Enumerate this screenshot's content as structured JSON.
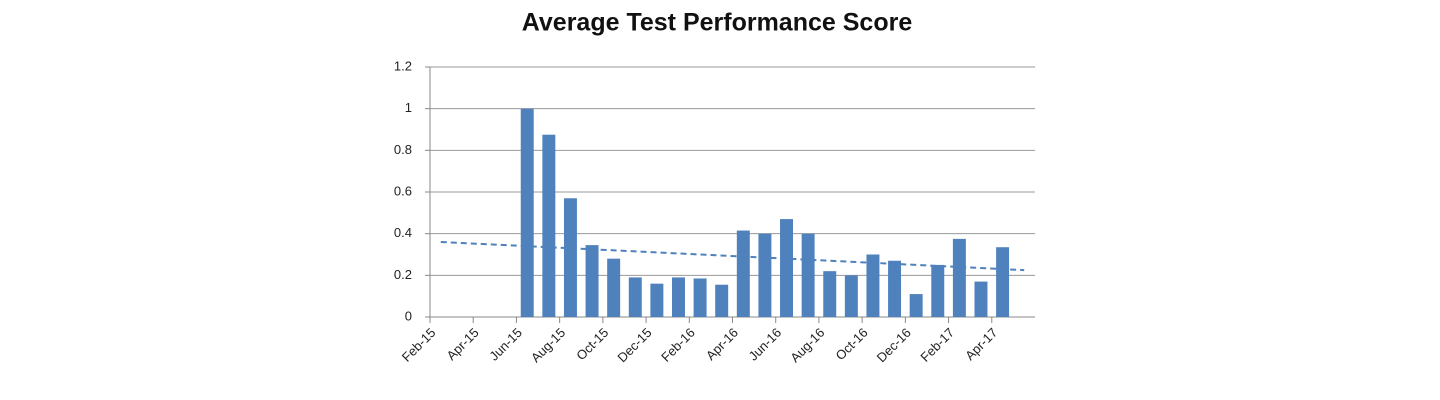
{
  "chart_data": {
    "type": "bar",
    "title": "Average Test Performance Score",
    "categories": [
      "Feb-15",
      null,
      "Apr-15",
      null,
      "Jun-15",
      null,
      "Aug-15",
      null,
      "Oct-15",
      null,
      "Dec-15",
      null,
      "Feb-16",
      null,
      "Apr-16",
      null,
      "Jun-16",
      null,
      "Aug-16",
      null,
      "Oct-16",
      null,
      "Dec-16",
      null,
      "Feb-17",
      null,
      "Apr-17",
      null
    ],
    "values": [
      null,
      null,
      null,
      null,
      1.0,
      0.875,
      0.57,
      0.345,
      0.28,
      0.19,
      0.16,
      0.19,
      0.185,
      0.155,
      0.415,
      0.4,
      0.47,
      0.4,
      0.22,
      0.2,
      0.3,
      0.27,
      0.11,
      0.25,
      0.375,
      0.17,
      0.335,
      null
    ],
    "color": "#4f81bd",
    "trendline": [
      0.36,
      0.225
    ],
    "ylim": [
      0,
      1.2
    ],
    "yticks": [
      0,
      0.2,
      0.4,
      0.6,
      0.8,
      1,
      1.2
    ],
    "grid": true
  }
}
